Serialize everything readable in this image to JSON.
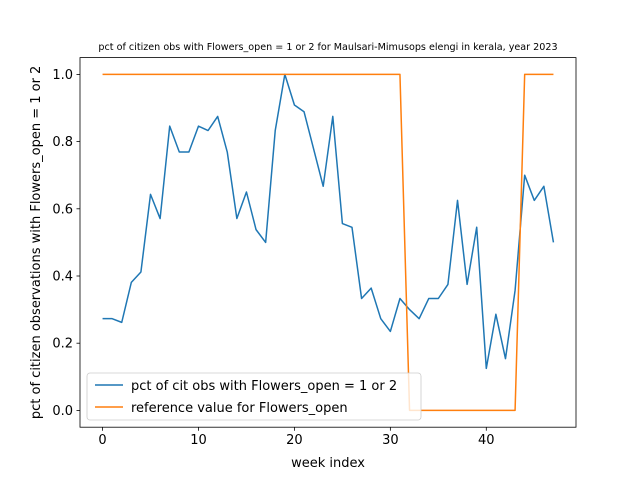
{
  "chart_data": {
    "type": "line",
    "title": "pct of citizen obs with Flowers_open = 1 or 2 for Maulsari-Mimusops elengi in kerala, year 2023",
    "xlabel": "week index",
    "ylabel": "pct of citizen observations with Flowers_open = 1 or 2",
    "xlim": [
      -2.35,
      49.35
    ],
    "ylim": [
      -0.05,
      1.05
    ],
    "x_ticks": [
      0,
      10,
      20,
      30,
      40
    ],
    "y_ticks": [
      0.0,
      0.2,
      0.4,
      0.6,
      0.8,
      1.0
    ],
    "x_tick_labels": [
      "0",
      "10",
      "20",
      "30",
      "40"
    ],
    "y_tick_labels": [
      "0.0",
      "0.2",
      "0.4",
      "0.6",
      "0.8",
      "1.0"
    ],
    "grid": false,
    "legend_position": "lower-left",
    "series": [
      {
        "name": "pct of cit obs with Flowers_open = 1 or 2",
        "color": "#1f77b4",
        "x": [
          0,
          1,
          2,
          3,
          4,
          5,
          6,
          7,
          8,
          9,
          10,
          11,
          12,
          13,
          14,
          15,
          16,
          17,
          18,
          19,
          20,
          21,
          22,
          23,
          24,
          25,
          26,
          27,
          28,
          29,
          30,
          31,
          32,
          33,
          34,
          35,
          36,
          37,
          38,
          39,
          40,
          41,
          42,
          43,
          44,
          45,
          46,
          47
        ],
        "y": [
          0.273,
          0.273,
          0.262,
          0.381,
          0.412,
          0.643,
          0.571,
          0.846,
          0.769,
          0.769,
          0.846,
          0.833,
          0.875,
          0.769,
          0.571,
          0.65,
          0.538,
          0.5,
          0.833,
          1.0,
          0.909,
          0.889,
          0.778,
          0.667,
          0.875,
          0.556,
          0.545,
          0.333,
          0.364,
          0.273,
          0.235,
          0.333,
          0.3,
          0.273,
          0.333,
          0.333,
          0.375,
          0.625,
          0.375,
          0.545,
          0.125,
          0.286,
          0.154,
          0.357,
          0.7,
          0.625,
          0.667,
          0.5
        ]
      },
      {
        "name": "reference value for Flowers_open",
        "color": "#ff7f0e",
        "x": [
          0,
          1,
          2,
          3,
          4,
          5,
          6,
          7,
          8,
          9,
          10,
          11,
          12,
          13,
          14,
          15,
          16,
          17,
          18,
          19,
          20,
          21,
          22,
          23,
          24,
          25,
          26,
          27,
          28,
          29,
          30,
          31,
          32,
          33,
          34,
          35,
          36,
          37,
          38,
          39,
          40,
          41,
          42,
          43,
          44,
          45,
          46,
          47
        ],
        "y": [
          1,
          1,
          1,
          1,
          1,
          1,
          1,
          1,
          1,
          1,
          1,
          1,
          1,
          1,
          1,
          1,
          1,
          1,
          1,
          1,
          1,
          1,
          1,
          1,
          1,
          1,
          1,
          1,
          1,
          1,
          1,
          1,
          0,
          0,
          0,
          0,
          0,
          0,
          0,
          0,
          0,
          0,
          0,
          0,
          1,
          1,
          1,
          1
        ]
      }
    ]
  }
}
